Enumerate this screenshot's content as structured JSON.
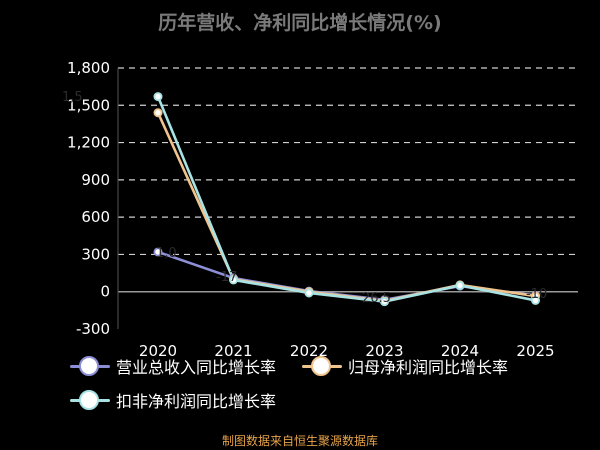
{
  "chart_data": {
    "type": "line",
    "title": "历年营收、净利同比增长情况(%)",
    "x": [
      "2020",
      "2021",
      "2022",
      "2023",
      "2024",
      "2025"
    ],
    "ylim": [
      -300,
      1800
    ],
    "yticks": [
      -300,
      0,
      300,
      600,
      900,
      1200,
      1500,
      1800
    ],
    "ytick_labels": [
      "-300",
      "0",
      "300",
      "600",
      "900",
      "1,200",
      "1,500",
      "1,800"
    ],
    "grid": true,
    "legend_position": "bottom-left",
    "series": [
      {
        "name": "营业总收入同比增长率",
        "color": "#8c8fd6",
        "values": [
          320,
          110,
          5,
          -65,
          45,
          -30
        ]
      },
      {
        "name": "归母净利润同比增长率",
        "color": "#f1c48e",
        "values": [
          1440,
          100,
          0,
          -75,
          55,
          -35
        ]
      },
      {
        "name": "扣非净利润同比增长率",
        "color": "#a9e2e2",
        "values": [
          1570,
          95,
          -10,
          -80,
          50,
          -70
        ]
      }
    ],
    "annotations": [
      "1,5",
      "1,0",
      "-17",
      "26.5",
      "-10"
    ],
    "source": "制图数据来自恒生聚源数据库"
  }
}
